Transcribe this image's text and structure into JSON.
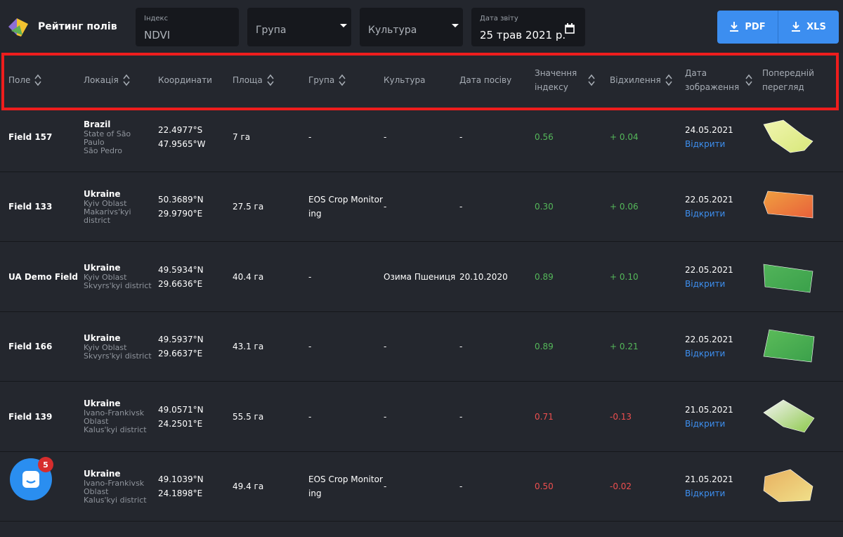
{
  "header": {
    "title": "Рейтинг полів",
    "filters": [
      {
        "label": "Індекс",
        "value": "NDVI"
      },
      {
        "value": "Група"
      },
      {
        "value": "Культура"
      },
      {
        "label": "Дата звіту",
        "value": "25 трав 2021 р."
      }
    ],
    "buttons": [
      "PDF",
      "XLS"
    ]
  },
  "table": {
    "columns": [
      "Поле",
      "Локація",
      "Координати",
      "Площа",
      "Група",
      "Культура",
      "Дата посіву",
      "Значення індексу",
      "Відхилення",
      "Дата зображення",
      "Попередній перегляд"
    ],
    "rows": [
      {
        "field": "Field 157",
        "country": "Brazil",
        "location": [
          "State of São Paulo",
          "São Pedro"
        ],
        "coordinates": [
          "22.4977°S",
          "47.9565°W"
        ],
        "area": "7 га",
        "group": "-",
        "crop": "-",
        "sowing_date": "-",
        "index_value": "0.56",
        "deviation": "+ 0.04",
        "image_date": "24.05.2021",
        "link": "Відкрити"
      },
      {
        "field": "Field 133",
        "country": "Ukraine",
        "location": [
          "Kyiv Oblast",
          "Makarivs'kyi district"
        ],
        "coordinates": [
          "50.3689°N",
          "29.9790°E"
        ],
        "area": "27.5 га",
        "group": "EOS Crop Monitoring",
        "crop": "-",
        "sowing_date": "-",
        "index_value": "0.30",
        "deviation": "+ 0.06",
        "image_date": "22.05.2021",
        "link": "Відкрити"
      },
      {
        "field": "UA Demo Field",
        "country": "Ukraine",
        "location": [
          "Kyiv Oblast",
          "Skvyrs'kyi district"
        ],
        "coordinates": [
          "49.5934°N",
          "29.6636°E"
        ],
        "area": "40.4 га",
        "group": "-",
        "crop": "Озима Пшениця",
        "sowing_date": "20.10.2020",
        "index_value": "0.89",
        "deviation": "+ 0.10",
        "image_date": "22.05.2021",
        "link": "Відкрити"
      },
      {
        "field": "Field 166",
        "country": "Ukraine",
        "location": [
          "Kyiv Oblast",
          "Skvyrs'kyi district"
        ],
        "coordinates": [
          "49.5937°N",
          "29.6637°E"
        ],
        "area": "43.1 га",
        "group": "-",
        "crop": "-",
        "sowing_date": "-",
        "index_value": "0.89",
        "deviation": "+ 0.21",
        "image_date": "22.05.2021",
        "link": "Відкрити"
      },
      {
        "field": "Field 139",
        "country": "Ukraine",
        "location": [
          "Ivano-Frankivsk Oblast",
          "Kalus'kyi district"
        ],
        "coordinates": [
          "49.0571°N",
          "24.2501°E"
        ],
        "area": "55.5 га",
        "group": "-",
        "crop": "-",
        "sowing_date": "-",
        "index_value": "0.71",
        "deviation": "-0.13",
        "image_date": "21.05.2021",
        "link": "Відкрити"
      },
      {
        "country": "Ukraine",
        "location": [
          "Ivano-Frankivsk Oblast",
          "Kalus'kyi district"
        ],
        "coordinates": [
          "49.1039°N",
          "24.1898°E"
        ],
        "area": "49.4 га",
        "group": "EOS Crop Monitoring",
        "crop": "-",
        "sowing_date": "-",
        "index_value": "0.50",
        "deviation": "-0.02",
        "image_date": "21.05.2021",
        "link": "Відкрити"
      }
    ]
  },
  "chat_badge": "5"
}
